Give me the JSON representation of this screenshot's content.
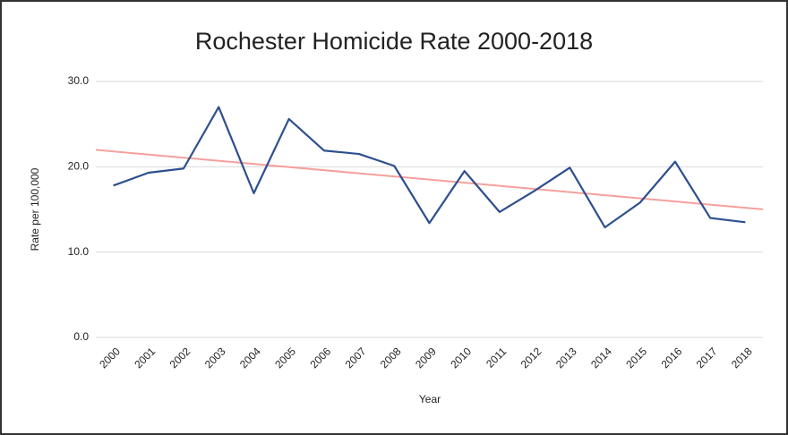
{
  "chart_data": {
    "type": "line",
    "title": "Rochester Homicide Rate 2000-2018",
    "x_label": "Year",
    "y_label": "Rate per 100,000",
    "categories": [
      "2000",
      "2001",
      "2002",
      "2003",
      "2004",
      "2005",
      "2006",
      "2007",
      "2008",
      "2009",
      "2010",
      "2011",
      "2012",
      "2013",
      "2014",
      "2015",
      "2016",
      "2017",
      "2018"
    ],
    "values": [
      17.8,
      19.3,
      19.8,
      27.0,
      16.9,
      25.6,
      21.9,
      21.5,
      20.1,
      13.4,
      19.5,
      14.7,
      17.2,
      19.9,
      12.9,
      15.8,
      20.6,
      14.0,
      13.5
    ],
    "color": "#2e4f8f",
    "trendline": {
      "start": 21.8,
      "end": 15.2,
      "color": "#f4a09c"
    },
    "ylim": [
      0,
      30
    ],
    "yticks": [
      {
        "value": 0,
        "label": "0.0"
      },
      {
        "value": 10,
        "label": "10.0"
      },
      {
        "value": 20,
        "label": "20.0"
      },
      {
        "value": 30,
        "label": "30.0"
      }
    ],
    "grid": true
  }
}
